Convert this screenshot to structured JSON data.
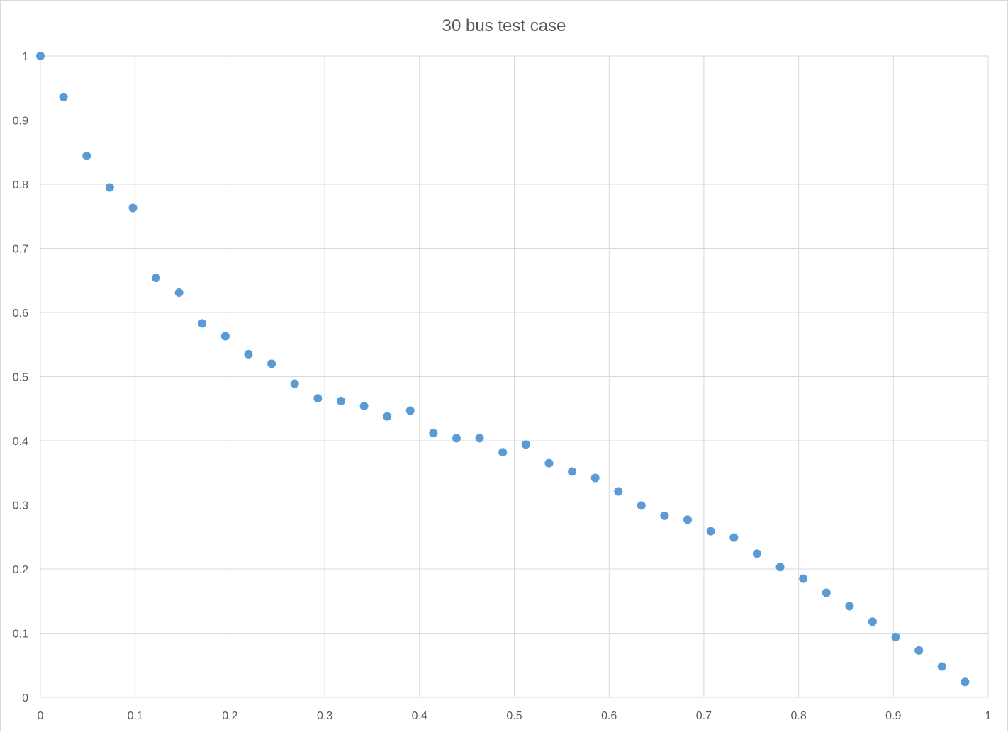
{
  "chart_data": {
    "type": "scatter",
    "title": "30 bus test case",
    "xlabel": "",
    "ylabel": "",
    "xlim": [
      0,
      1
    ],
    "ylim": [
      0,
      1
    ],
    "x_ticks": [
      "0",
      "0.1",
      "0.2",
      "0.3",
      "0.4",
      "0.5",
      "0.6",
      "0.7",
      "0.8",
      "0.9",
      "1"
    ],
    "y_ticks": [
      "0",
      "0.1",
      "0.2",
      "0.3",
      "0.4",
      "0.5",
      "0.6",
      "0.7",
      "0.8",
      "0.9",
      "1"
    ],
    "grid": true,
    "legend": "none",
    "marker_color": "#5b9bd5",
    "series": [
      {
        "x": [
          0,
          0.0244,
          0.0488,
          0.0732,
          0.0976,
          0.122,
          0.1463,
          0.1707,
          0.1951,
          0.2195,
          0.2439,
          0.2683,
          0.2927,
          0.3171,
          0.3415,
          0.3659,
          0.3902,
          0.4146,
          0.439,
          0.4634,
          0.4878,
          0.5122,
          0.5366,
          0.561,
          0.5854,
          0.6098,
          0.6341,
          0.6585,
          0.6829,
          0.7073,
          0.7317,
          0.7561,
          0.7805,
          0.8049,
          0.8293,
          0.8537,
          0.878,
          0.9024,
          0.9268,
          0.9512,
          0.9756
        ],
        "y": [
          1.0,
          0.936,
          0.844,
          0.795,
          0.763,
          0.654,
          0.631,
          0.583,
          0.563,
          0.535,
          0.52,
          0.489,
          0.466,
          0.462,
          0.454,
          0.438,
          0.447,
          0.412,
          0.404,
          0.404,
          0.382,
          0.394,
          0.365,
          0.352,
          0.342,
          0.321,
          0.299,
          0.283,
          0.277,
          0.259,
          0.249,
          0.224,
          0.203,
          0.185,
          0.163,
          0.142,
          0.118,
          0.094,
          0.073,
          0.048,
          0.024
        ]
      }
    ]
  }
}
